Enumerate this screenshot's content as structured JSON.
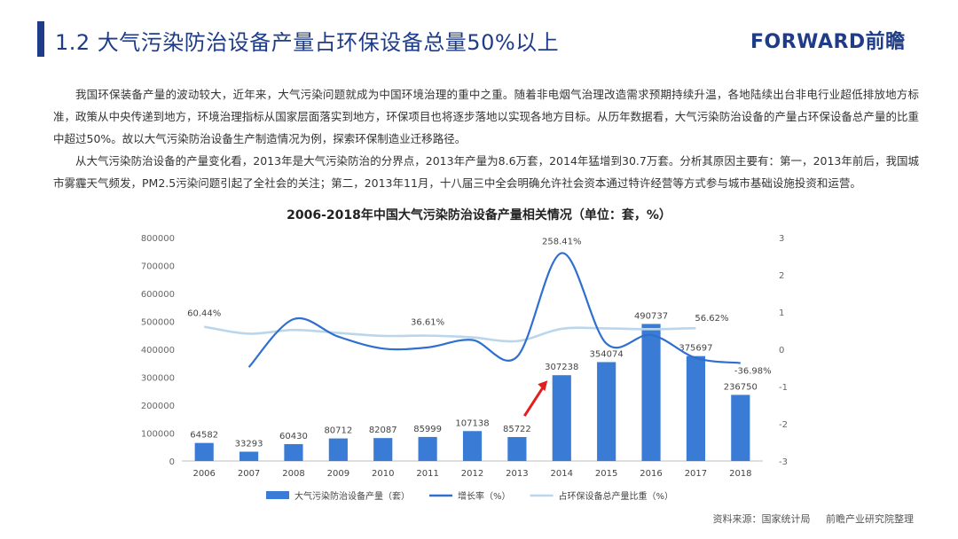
{
  "header": {
    "title": "1.2 大气污染防治设备产量占环保设备总量50%以上",
    "brand": "FORWARD前瞻"
  },
  "paragraphs": [
    "我国环保装备产量的波动较大，近年来，大气污染问题就成为中国环境治理的重中之重。随着非电烟气治理改造需求预期持续升温，各地陆续出台非电行业超低排放地方标准，政策从中央传递到地方，环境治理指标从国家层面落实到地方，环保项目也将逐步落地以实现各地方目标。从历年数据看，大气污染防治设备的产量占环保设备总产量的比重中超过50%。故以大气污染防治设备生产制造情况为例，探索环保制造业迁移路径。",
    "从大气污染防治设备的产量变化看，2013年是大气污染防治的分界点，2013年产量为8.6万套，2014年猛增到30.7万套。分析其原因主要有：第一，2013年前后，我国城市雾霾天气频发，PM2.5污染问题引起了全社会的关注；第二，2013年11月，十八届三中全会明确允许社会资本通过特许经营等方式参与城市基础设施投资和运营。"
  ],
  "chart_data": {
    "type": "bar",
    "title": "2006-2018年中国大气污染防治设备产量相关情况（单位：套，%）",
    "categories": [
      "2006",
      "2007",
      "2008",
      "2009",
      "2010",
      "2011",
      "2012",
      "2013",
      "2014",
      "2015",
      "2016",
      "2017",
      "2018"
    ],
    "series": [
      {
        "name": "大气污染防治设备产量（套）",
        "type": "bar",
        "axis": "left",
        "color": "#3a7bd5",
        "values": [
          64582,
          33293,
          60430,
          80712,
          82087,
          85999,
          107138,
          85722,
          307238,
          354074,
          490737,
          375697,
          236750
        ]
      },
      {
        "name": "增长率（%）",
        "type": "line",
        "axis": "right",
        "color": "#2e6fd0",
        "values": [
          null,
          -0.48,
          0.81,
          0.34,
          0.02,
          0.05,
          0.25,
          -0.2,
          2.5841,
          0.1524,
          0.386,
          -0.2344,
          -0.3698
        ]
      },
      {
        "name": "占环保设备总产量比重（%）",
        "type": "line",
        "axis": "right",
        "color": "#b9d6ec",
        "values": [
          0.6044,
          0.42,
          0.52,
          0.44,
          0.36,
          0.3661,
          0.32,
          0.22,
          0.55,
          0.56,
          0.54,
          0.5662,
          null
        ]
      }
    ],
    "bar_labels": [
      "64582",
      "33293",
      "60430",
      "80712",
      "82087",
      "85999",
      "107138",
      "85722",
      "307238",
      "354074",
      "490737",
      "375697",
      "236750"
    ],
    "annotations": [
      {
        "series": 2,
        "index": 0,
        "text": "60.44%"
      },
      {
        "series": 2,
        "index": 5,
        "text": "36.61%"
      },
      {
        "series": 1,
        "index": 8,
        "text": "258.41%"
      },
      {
        "series": 2,
        "index": 11,
        "text": "56.62%"
      },
      {
        "series": 1,
        "index": 12,
        "text": "-36.98%"
      }
    ],
    "y_left": {
      "min": 0,
      "max": 800000,
      "ticks": [
        "0",
        "100000",
        "200000",
        "300000",
        "400000",
        "500000",
        "600000",
        "700000",
        "800000"
      ]
    },
    "y_right": {
      "min": -3,
      "max": 3,
      "ticks": [
        "-3",
        "-2",
        "-1",
        "0",
        "1",
        "2",
        "3"
      ]
    },
    "grid": false,
    "legend_position": "bottom",
    "highlight_arrow": {
      "index": 8,
      "color": "#e02020"
    }
  },
  "source": {
    "text": "资料来源：国家统计局",
    "org": "前瞻产业研究院整理"
  }
}
